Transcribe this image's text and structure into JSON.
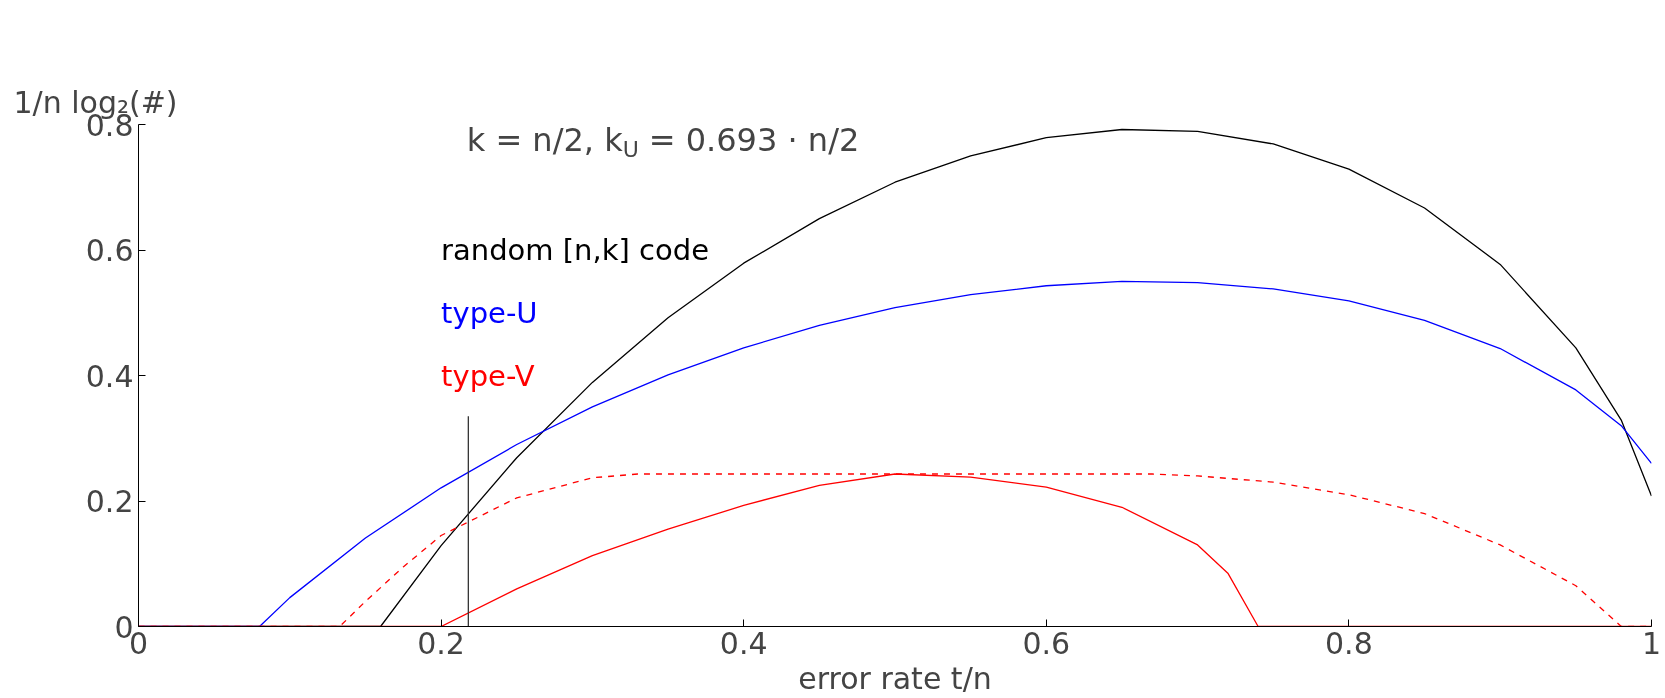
{
  "chart_data": {
    "type": "line",
    "xlabel": "error rate t/n",
    "ylabel": "1/n log₂(#)",
    "annotations": [
      "k = n/2, k$_{U}$ = 0.693 · n/2"
    ],
    "xlim": [
      0,
      1
    ],
    "ylim": [
      0,
      0.8
    ],
    "xticks": [
      0,
      0.2,
      0.4,
      0.6,
      0.8,
      1
    ],
    "yticks": [
      0,
      0.2,
      0.4,
      0.6,
      0.8
    ],
    "grid": false,
    "legend": "top left",
    "marker": "none",
    "series": [
      {
        "name": "random [n,k] code",
        "color": "#000000",
        "line_style": "solid",
        "x": [
          0,
          0.16,
          0.2,
          0.25,
          0.3,
          0.35,
          0.4,
          0.45,
          0.5,
          0.55,
          0.6,
          0.65,
          0.7,
          0.75,
          0.8,
          0.85,
          0.9,
          0.95,
          0.98,
          1
        ],
        "values": [
          0,
          0,
          0.129,
          0.269,
          0.389,
          0.492,
          0.579,
          0.65,
          0.708,
          0.75,
          0.779,
          0.792,
          0.789,
          0.769,
          0.729,
          0.667,
          0.577,
          0.444,
          0.329,
          0.208
        ]
      },
      {
        "name": "type-U",
        "color": "#0000ff",
        "line_style": "solid",
        "x": [
          0,
          0.08,
          0.1,
          0.15,
          0.2,
          0.25,
          0.3,
          0.35,
          0.4,
          0.45,
          0.5,
          0.55,
          0.6,
          0.65,
          0.7,
          0.75,
          0.8,
          0.85,
          0.9,
          0.95,
          0.98,
          1
        ],
        "values": [
          0,
          0,
          0.046,
          0.141,
          0.221,
          0.29,
          0.35,
          0.401,
          0.444,
          0.48,
          0.508,
          0.529,
          0.543,
          0.55,
          0.548,
          0.538,
          0.519,
          0.488,
          0.443,
          0.377,
          0.32,
          0.26
        ]
      },
      {
        "name": "type-V",
        "color": "#ff0000",
        "line_style": "solid",
        "x": [
          0,
          0.2,
          0.25,
          0.3,
          0.35,
          0.4,
          0.45,
          0.5,
          0.55,
          0.6,
          0.65,
          0.7,
          0.72,
          0.74,
          1
        ],
        "values": [
          0,
          0,
          0.06,
          0.113,
          0.155,
          0.193,
          0.225,
          0.243,
          0.238,
          0.222,
          0.19,
          0.13,
          0.085,
          0,
          0
        ]
      },
      {
        "color": "#ff0000",
        "line_style": "dashed",
        "x": [
          0,
          0.133,
          0.15,
          0.175,
          0.2,
          0.25,
          0.3,
          0.33,
          0.67,
          0.7,
          0.75,
          0.8,
          0.85,
          0.9,
          0.95,
          0.98,
          1
        ],
        "values": [
          0,
          0,
          0.04,
          0.095,
          0.145,
          0.205,
          0.237,
          0.243,
          0.243,
          0.24,
          0.23,
          0.21,
          0.18,
          0.13,
          0.065,
          0,
          0
        ]
      },
      {
        "color": "#333333",
        "line_style": "solid",
        "x": [
          0.218,
          0.218
        ],
        "values": [
          0,
          0.335
        ]
      }
    ]
  }
}
